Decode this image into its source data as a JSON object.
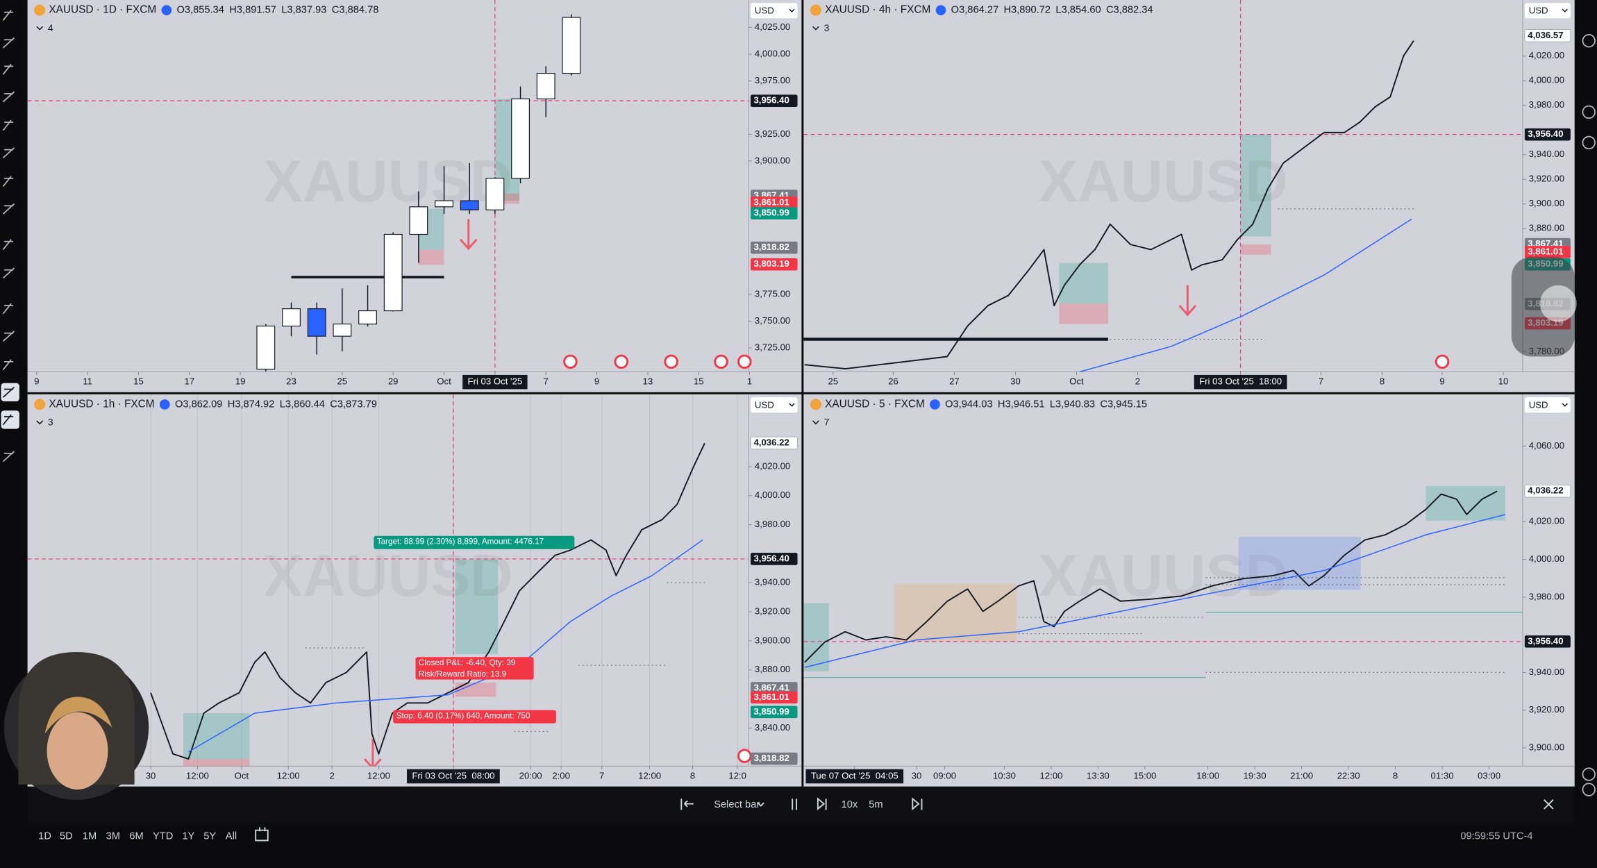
{
  "chart_data": [
    {
      "type": "candlestick",
      "title": "XAUUSD · 1D · FXCM",
      "ohlc": [
        "O3,855.34",
        "H3,891.57",
        "L3,837.93",
        "C3,884.78"
      ],
      "indicators": "4",
      "currency": "USD",
      "watermark": "XAUUSD",
      "xlim": [
        -9.36,
        18.96
      ],
      "xticks": [
        {
          "value": -9,
          "label": "9"
        },
        {
          "value": -7,
          "label": "11"
        },
        {
          "value": -5,
          "label": "15"
        },
        {
          "value": -3,
          "label": "17"
        },
        {
          "value": -1,
          "label": "19"
        },
        {
          "value": 1,
          "label": "23"
        },
        {
          "value": 3,
          "label": "25"
        },
        {
          "value": 5,
          "label": "29"
        },
        {
          "value": 7,
          "label": "Oct"
        },
        {
          "value": 9,
          "label": "Fri 03 Oct '25"
        },
        {
          "value": 11,
          "label": "7"
        },
        {
          "value": 13,
          "label": "9"
        },
        {
          "value": 15,
          "label": "13"
        },
        {
          "value": 17,
          "label": "15"
        },
        {
          "value": 19,
          "label": "1"
        }
      ],
      "highlight_xtick": 9,
      "ylim": [
        3702.5,
        4050.8
      ],
      "yticks": [
        {
          "value": 4025,
          "label": "4,025.00"
        },
        {
          "value": 4000,
          "label": "4,000.00"
        },
        {
          "value": 3975,
          "label": "3,975.00"
        },
        {
          "value": 3925,
          "label": "3,925.00"
        },
        {
          "value": 3900,
          "label": "3,900.00"
        },
        {
          "value": 3775,
          "label": "3,775.00"
        },
        {
          "value": 3750,
          "label": "3,750.00"
        },
        {
          "value": 3725,
          "label": "3,725.00"
        }
      ],
      "price_labels": [
        {
          "value": 3956.4,
          "label": "3,956.40",
          "color": "#131722"
        },
        {
          "value": 3867.41,
          "label": "3,867.41",
          "color": "#787b86"
        },
        {
          "value": 3861.01,
          "label": "3,861.01",
          "color": "#f23645"
        },
        {
          "value": 3850.99,
          "label": "3,850.99",
          "color": "#089981"
        },
        {
          "value": 3818.82,
          "label": "3,818.82",
          "color": "#787b86"
        },
        {
          "value": 3803.19,
          "label": "3,803.19",
          "color": "#f23645"
        }
      ],
      "x": [
        0,
        1,
        2,
        3,
        4,
        5,
        6,
        7,
        8,
        9,
        10,
        11,
        12
      ],
      "open": [
        3705,
        3745.4,
        3761.6,
        3735.9,
        3747.3,
        3759.7,
        3831.3,
        3857.1,
        3862.8,
        3854.2,
        3883.8,
        3958.2,
        3982.1
      ],
      "high": [
        3747.3,
        3767.4,
        3767.4,
        3780.7,
        3783.6,
        3833.2,
        3871.4,
        3895.2,
        3898.1,
        3884.8,
        3969.7,
        3988.7,
        4037.4
      ],
      "low": [
        3703,
        3735.9,
        3718.7,
        3721.6,
        3745,
        3759,
        3804.6,
        3850.4,
        3850.4,
        3850.4,
        3879,
        3941,
        3980
      ],
      "close": [
        3745.4,
        3761.6,
        3735.9,
        3747.3,
        3759.7,
        3831.3,
        3857.1,
        3862.8,
        3854.2,
        3883.8,
        3958.2,
        3982.1,
        4034.5
      ],
      "up_color": "#ffffff",
      "down_color": "#2962ff"
    },
    {
      "type": "line",
      "title": "XAUUSD · 4h · FXCM",
      "ohlc": [
        "O3,864.27",
        "H3,890.72",
        "L3,854.60",
        "C3,882.34"
      ],
      "indicators": "3",
      "currency": "USD",
      "watermark": "XAUUSD",
      "xlim": [
        0,
        70.6
      ],
      "xticks": [
        {
          "value": 2.9,
          "label": "25"
        },
        {
          "value": 8.8,
          "label": "26"
        },
        {
          "value": 14.8,
          "label": "27"
        },
        {
          "value": 20.8,
          "label": "30"
        },
        {
          "value": 26.8,
          "label": "Oct"
        },
        {
          "value": 32.8,
          "label": "2"
        },
        {
          "value": 42.9,
          "label": "Fri 03 Oct '25  18:00"
        },
        {
          "value": 50.8,
          "label": "7"
        },
        {
          "value": 56.8,
          "label": "8"
        },
        {
          "value": 62.7,
          "label": "9"
        },
        {
          "value": 68.7,
          "label": "10"
        }
      ],
      "highlight_xtick": 6,
      "ylim": [
        3763.8,
        4065.5
      ],
      "yticks": [
        {
          "value": 4020,
          "label": "4,020.00"
        },
        {
          "value": 4000,
          "label": "4,000.00"
        },
        {
          "value": 3980,
          "label": "3,980.00"
        },
        {
          "value": 3940,
          "label": "3,940.00"
        },
        {
          "value": 3920,
          "label": "3,920.00"
        },
        {
          "value": 3900,
          "label": "3,900.00"
        },
        {
          "value": 3880,
          "label": "3,880.00"
        },
        {
          "value": 3780,
          "label": "3,780.00"
        }
      ],
      "price_labels": [
        {
          "value": 4036.57,
          "label": "4,036.57",
          "color": "#ffffff"
        },
        {
          "value": 3956.4,
          "label": "3,956.40",
          "color": "#131722"
        },
        {
          "value": 3867.41,
          "label": "3,867.41",
          "color": "#787b86"
        },
        {
          "value": 3861.01,
          "label": "3,861.01",
          "color": "#f23645"
        },
        {
          "value": 3850.99,
          "label": "3,850.99",
          "color": "#089981"
        },
        {
          "value": 3818.82,
          "label": "3,818.82",
          "color": "#787b86"
        },
        {
          "value": 3803.19,
          "label": "3,803.19",
          "color": "#f23645"
        }
      ],
      "series": [
        {
          "color": "#131722",
          "x": [
            0.1,
            4.1,
            14.1,
            16.1,
            18.1,
            20.1,
            22.1,
            23.6,
            24.6,
            25.6,
            27.1,
            28.6,
            30.1,
            31.1,
            32.1,
            34.1,
            36.1,
            37.1,
            38.1,
            39.1,
            41.1,
            42.6,
            44.1,
            45.6,
            47.1,
            49.1,
            51.1,
            53.1,
            54.6,
            56.1,
            57.6,
            58.9,
            59.9
          ],
          "values": [
            3769.6,
            3766.3,
            3776.2,
            3801.0,
            3817.5,
            3825.8,
            3846.4,
            3863.0,
            3817.5,
            3834.0,
            3850.6,
            3863.0,
            3883.6,
            3875.4,
            3867.1,
            3863.0,
            3871.2,
            3875.4,
            3846.4,
            3850.6,
            3854.7,
            3871.2,
            3883.6,
            3912.6,
            3933.2,
            3945.6,
            3958.0,
            3958.0,
            3966.3,
            3978.7,
            3986.9,
            4020.0,
            4032.4
          ]
        },
        {
          "color": "#2962ff",
          "x": [
            27.1,
            36.1,
            43.1,
            51.1,
            59.7
          ],
          "values": [
            3763.8,
            3784.5,
            3809.3,
            3842.3,
            3887.8
          ]
        }
      ]
    },
    {
      "type": "line",
      "title": "XAUUSD · 1h · FXCM",
      "ohlc": [
        "O3,862.09",
        "H3,874.92",
        "L3,860.44",
        "C3,873.79"
      ],
      "indicators": "3",
      "currency": "USD",
      "watermark": "XAUUSD",
      "grid": true,
      "xlim": [
        0,
        191.35
      ],
      "xticks": [
        {
          "value": 32.7,
          "label": "30"
        },
        {
          "value": 45.1,
          "label": "12:00"
        },
        {
          "value": 56.8,
          "label": "Oct"
        },
        {
          "value": 69.2,
          "label": "12:00"
        },
        {
          "value": 80.8,
          "label": "2"
        },
        {
          "value": 93.2,
          "label": "12:00"
        },
        {
          "value": 113.0,
          "label": "Fri 03 Oct '25  08:00"
        },
        {
          "value": 133.5,
          "label": "20:00"
        },
        {
          "value": 141.6,
          "label": "2:00"
        },
        {
          "value": 152.4,
          "label": "7"
        },
        {
          "value": 165.1,
          "label": "12:00"
        },
        {
          "value": 176.5,
          "label": "8"
        },
        {
          "value": 188.4,
          "label": "12:0"
        }
      ],
      "highlight_xtick": 6,
      "ylim": [
        3813.7,
        4069.8
      ],
      "yticks": [
        {
          "value": 4020,
          "label": "4,020.00"
        },
        {
          "value": 4000,
          "label": "4,000.00"
        },
        {
          "value": 3980,
          "label": "3,980.00"
        },
        {
          "value": 3940,
          "label": "3,940.00"
        },
        {
          "value": 3920,
          "label": "3,920.00"
        },
        {
          "value": 3900,
          "label": "3,900.00"
        },
        {
          "value": 3880,
          "label": "3,880.00"
        },
        {
          "value": 3840,
          "label": "3,840.00"
        }
      ],
      "price_labels": [
        {
          "value": 4036.22,
          "label": "4,036.22",
          "color": "#ffffff"
        },
        {
          "value": 3956.4,
          "label": "3,956.40",
          "color": "#131722"
        },
        {
          "value": 3867.41,
          "label": "3,867.41",
          "color": "#787b86"
        },
        {
          "value": 3861.01,
          "label": "3,861.01",
          "color": "#f23645"
        },
        {
          "value": 3850.99,
          "label": "3,850.99",
          "color": "#089981"
        },
        {
          "value": 3818.82,
          "label": "3,818.82",
          "color": "#787b86"
        }
      ],
      "series": [
        {
          "color": "#131722",
          "x": [
            32.7,
            38.6,
            42.7,
            46.8,
            50.8,
            56.2,
            60.3,
            63.0,
            67.0,
            71.1,
            75.1,
            79.2,
            84.6,
            90.0,
            91.4,
            93.2,
            96.8,
            100.8,
            106.2,
            111.6,
            117.0,
            122.4,
            126.5,
            130.5,
            135.9,
            140.0,
            144.1,
            149.5,
            153.5,
            156.2,
            158.9,
            163.0,
            168.4,
            172.4,
            176.5,
            179.7
          ],
          "values": [
            3864.2,
            3822.1,
            3818.6,
            3850.2,
            3857.2,
            3864.2,
            3885.3,
            3892.3,
            3874.7,
            3864.2,
            3857.2,
            3871.2,
            3878.2,
            3892.3,
            3836.1,
            3822.1,
            3850.2,
            3857.2,
            3857.2,
            3864.2,
            3871.2,
            3892.3,
            3913.3,
            3934.4,
            3948.4,
            3958.9,
            3962.5,
            3969.5,
            3962.5,
            3944.9,
            3958.9,
            3976.5,
            3983.5,
            3994.0,
            4018.6,
            4036.1
          ]
        },
        {
          "color": "#2962ff",
          "x": [
            42.7,
            60.3,
            81.9,
            111.6,
            122.4,
            133.2,
            144.1,
            154.9,
            165.7,
            179.2
          ],
          "values": [
            3823.5,
            3850.2,
            3857.2,
            3862.8,
            3874.7,
            3888.8,
            3913.3,
            3930.9,
            3944.9,
            3969.5
          ]
        }
      ],
      "annotations": [
        {
          "text": "Target: 88.99 (2.30%) 8,899, Amount: 4476.17",
          "color": "#089981"
        },
        {
          "text": "Closed P&L: -6.40, Qty: 39",
          "color": "#f23645"
        },
        {
          "text": "Risk/Reward Ratio: 13.9",
          "color": "#f23645"
        },
        {
          "text": "Stop: 6.40 (0.17%) 640, Amount: 750",
          "color": "#f23645"
        }
      ]
    },
    {
      "type": "line",
      "title": "XAUUSD · 5 · FXCM",
      "ohlc": [
        "O3,944.03",
        "H3,946.51",
        "L3,940.83",
        "C3,945.15"
      ],
      "indicators": "7",
      "currency": "USD",
      "watermark": "XAUUSD",
      "xlim": [
        0,
        276.2
      ],
      "xticks": [
        {
          "value": 19.6,
          "label": "Tue 07 Oct '25  04:05"
        },
        {
          "value": 43.4,
          "label": "30"
        },
        {
          "value": 54.2,
          "label": "09:00"
        },
        {
          "value": 77.1,
          "label": "10:30"
        },
        {
          "value": 95.1,
          "label": "12:00"
        },
        {
          "value": 113.1,
          "label": "13:30"
        },
        {
          "value": 131.1,
          "label": "15:00"
        },
        {
          "value": 155.3,
          "label": "18:00"
        },
        {
          "value": 173.3,
          "label": "19:30"
        },
        {
          "value": 191.3,
          "label": "21:00"
        },
        {
          "value": 209.3,
          "label": "22:30"
        },
        {
          "value": 227.3,
          "label": "8"
        },
        {
          "value": 245.3,
          "label": "01:30"
        },
        {
          "value": 263.3,
          "label": "03:00"
        }
      ],
      "highlight_xtick": 0,
      "ylim": [
        3890.3,
        4087.6
      ],
      "yticks": [
        {
          "value": 4060,
          "label": "4,060.00"
        },
        {
          "value": 4020,
          "label": "4,020.00"
        },
        {
          "value": 4000,
          "label": "4,000.00"
        },
        {
          "value": 3980,
          "label": "3,980.00"
        },
        {
          "value": 3940,
          "label": "3,940.00"
        },
        {
          "value": 3920,
          "label": "3,920.00"
        },
        {
          "value": 3900,
          "label": "3,900.00"
        }
      ],
      "price_labels": [
        {
          "value": 4036.22,
          "label": "4,036.22",
          "color": "#ffffff"
        },
        {
          "value": 3956.4,
          "label": "3,956.40",
          "color": "#131722"
        }
      ],
      "series": [
        {
          "color": "#131722",
          "x": [
            0.4,
            8.2,
            16.0,
            23.9,
            31.7,
            39.5,
            47.3,
            55.2,
            63.0,
            68.9,
            74.7,
            82.6,
            88.4,
            92.3,
            96.2,
            100.2,
            106.0,
            113.8,
            121.7,
            133.4,
            145.1,
            156.9,
            168.6,
            180.4,
            188.2,
            194.1,
            199.9,
            207.7,
            215.6,
            223.4,
            231.2,
            239.0,
            244.9,
            250.8,
            254.7,
            260.6,
            266.4
          ],
          "values": [
            3945.4,
            3956.2,
            3961.6,
            3957.3,
            3958.9,
            3957.3,
            3967.0,
            3977.8,
            3984.3,
            3972.4,
            3977.8,
            3985.9,
            3988.6,
            3967.0,
            3964.3,
            3972.4,
            3977.8,
            3984.3,
            3977.8,
            3978.9,
            3980.5,
            3985.9,
            3989.7,
            3991.4,
            3994.1,
            3985.9,
            3991.4,
            4002.2,
            4010.3,
            4013.0,
            4018.4,
            4026.5,
            4034.6,
            4031.9,
            4023.8,
            4031.9,
            4036.2
          ]
        },
        {
          "color": "#2962ff",
          "x": [
            0.4,
            43.4,
            82.6,
            160.8,
            199.9,
            239.0,
            269.6
          ],
          "values": [
            3942.7,
            3957.3,
            3961.6,
            3983.2,
            3994.1,
            4013.0,
            4023.8
          ]
        }
      ]
    }
  ],
  "replay": {
    "select_bar": "Select bar",
    "speed": "10x",
    "interval": "5m"
  },
  "bottom_toolbar": {
    "ranges": [
      "1D",
      "5D",
      "1M",
      "3M",
      "6M",
      "YTD",
      "1Y",
      "5Y",
      "All"
    ],
    "clock": "09:59:55 UTC-4"
  }
}
